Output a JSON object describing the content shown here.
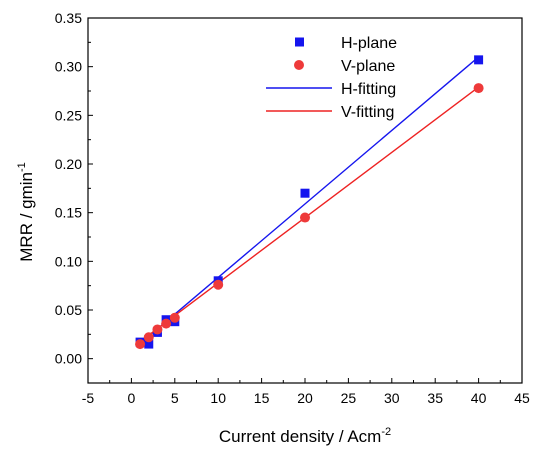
{
  "chart_data": {
    "type": "scatter",
    "xlabel": "Current density / Acm",
    "xlabel_sup": "-2",
    "ylabel": "MRR / gmin",
    "ylabel_sup": "-1",
    "xlim": [
      -5,
      45
    ],
    "ylim": [
      -0.025,
      0.35
    ],
    "xticks": [
      -5,
      0,
      5,
      10,
      15,
      20,
      25,
      30,
      35,
      40,
      45
    ],
    "yticks": [
      0.0,
      0.05,
      0.1,
      0.15,
      0.2,
      0.25,
      0.3,
      0.35
    ],
    "xtick_labels": [
      "-5",
      "0",
      "5",
      "10",
      "15",
      "20",
      "25",
      "30",
      "35",
      "40",
      "45"
    ],
    "ytick_labels": [
      "0.00",
      "0.05",
      "0.10",
      "0.15",
      "0.20",
      "0.25",
      "0.30",
      "0.35"
    ],
    "grid": false,
    "legend_position": "top-right",
    "series": [
      {
        "name": "H-plane",
        "kind": "scatter",
        "marker": "square",
        "color": "#1515ee",
        "x": [
          1,
          2,
          3,
          4,
          5,
          10,
          20,
          40
        ],
        "y": [
          0.017,
          0.015,
          0.027,
          0.04,
          0.038,
          0.08,
          0.17,
          0.307
        ]
      },
      {
        "name": "V-plane",
        "kind": "scatter",
        "marker": "circle",
        "color": "#ee3a3a",
        "x": [
          1,
          2,
          3,
          4,
          5,
          10,
          20,
          40
        ],
        "y": [
          0.015,
          0.022,
          0.03,
          0.036,
          0.042,
          0.076,
          0.145,
          0.278
        ]
      },
      {
        "name": "H-fitting",
        "kind": "line",
        "color": "#1515ee",
        "x": [
          1,
          40
        ],
        "y": [
          0.0155,
          0.31
        ]
      },
      {
        "name": "V-fitting",
        "kind": "line",
        "color": "#ee2222",
        "x": [
          1,
          40
        ],
        "y": [
          0.0175,
          0.279
        ]
      }
    ]
  }
}
